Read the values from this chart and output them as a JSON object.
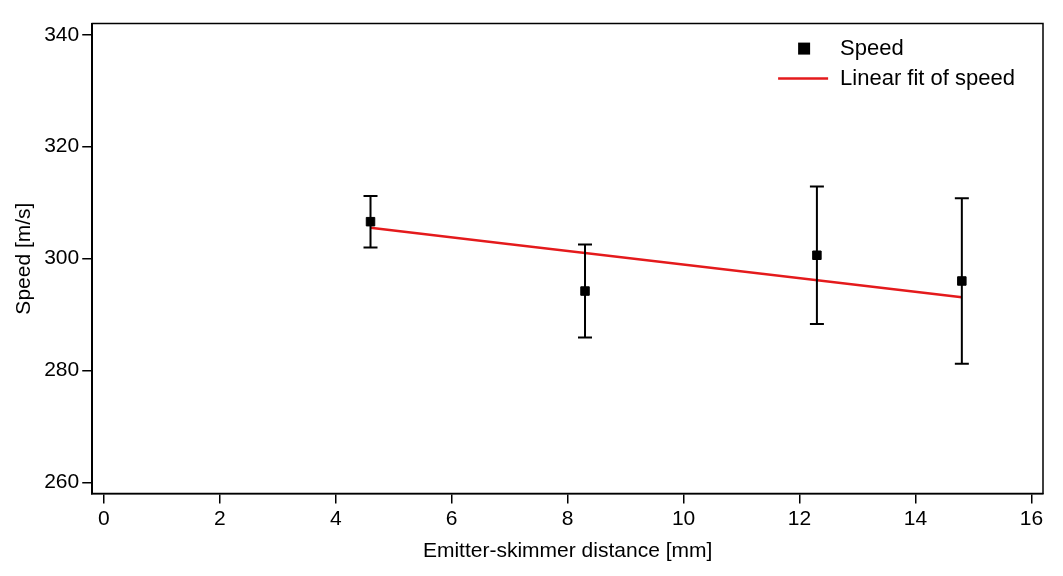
{
  "chart_data": {
    "type": "scatter",
    "xlabel": "Emitter-skimmer distance [mm]",
    "ylabel": "Speed [m/s]",
    "xlim": [
      -0.2,
      16.2
    ],
    "xticks": [
      0,
      2,
      4,
      6,
      8,
      10,
      12,
      14,
      16
    ],
    "ylim": [
      258,
      342
    ],
    "yticks": [
      260,
      280,
      300,
      320,
      340
    ],
    "legend": "top right",
    "series": [
      {
        "name": "Speed",
        "type": "scatter",
        "color": "#000000",
        "marker": "square",
        "x": [
          4.6,
          8.3,
          12.3,
          14.8
        ],
        "values": [
          306.6,
          294.2,
          300.6,
          296.0
        ],
        "errors": [
          4.6,
          8.3,
          12.3,
          14.8
        ]
      },
      {
        "name": "Linear fit of speed",
        "type": "line",
        "color": "#e41a1c",
        "marker": "none",
        "x": [
          4.6,
          14.8
        ],
        "values": [
          305.5,
          293.1
        ]
      }
    ]
  }
}
